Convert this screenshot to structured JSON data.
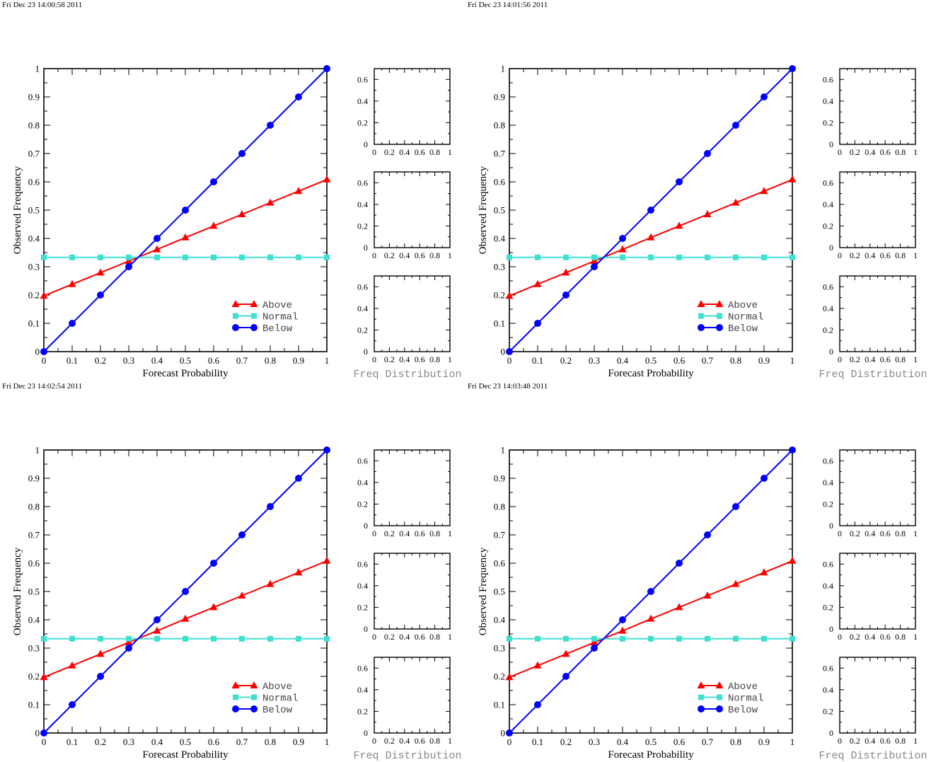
{
  "colors": {
    "above": "#ff0000",
    "normal": "#40e0d0",
    "below": "#0000ff",
    "axis": "#000000",
    "freq_label": "#888888"
  },
  "icons": {
    "above": "triangle-marker",
    "normal": "square-marker",
    "below": "circle-marker"
  },
  "chart_data": [
    {
      "type": "line",
      "timestamp": "Fri Dec 23 14:00:58 2011",
      "xlabel": "Forecast Probability",
      "ylabel": "Observed Frequency",
      "xlim": [
        0,
        1
      ],
      "ylim": [
        0,
        1
      ],
      "xticks": [
        "0",
        "0.1",
        "0.2",
        "0.3",
        "0.4",
        "0.5",
        "0.6",
        "0.7",
        "0.8",
        "0.9",
        "1"
      ],
      "yticks": [
        "0",
        "0.1",
        "0.2",
        "0.3",
        "0.4",
        "0.5",
        "0.6",
        "0.7",
        "0.8",
        "0.9",
        "1"
      ],
      "legend_position": "bottom-right",
      "x": [
        0,
        0.1,
        0.2,
        0.3,
        0.4,
        0.5,
        0.6,
        0.7,
        0.8,
        0.9,
        1
      ],
      "series": [
        {
          "name": "Above",
          "color": "#ff0000",
          "marker": "triangle",
          "values": [
            0.197,
            0.238,
            0.279,
            0.32,
            0.361,
            0.403,
            0.444,
            0.485,
            0.526,
            0.567,
            0.608
          ]
        },
        {
          "name": "Normal",
          "color": "#40e0d0",
          "marker": "square",
          "values": [
            0.333,
            0.333,
            0.333,
            0.333,
            0.333,
            0.333,
            0.333,
            0.333,
            0.333,
            0.333,
            0.333
          ]
        },
        {
          "name": "Below",
          "color": "#0000ff",
          "marker": "circle",
          "values": [
            0,
            0.1,
            0.2,
            0.3,
            0.4,
            0.5,
            0.6,
            0.7,
            0.8,
            0.9,
            1
          ]
        }
      ],
      "freq_distribution": {
        "label": "Freq Distribution",
        "panels": 3,
        "xticks": [
          "0",
          "0.2",
          "0.4",
          "0.6",
          "0.8",
          "1"
        ],
        "yticks": [
          "0",
          "0.2",
          "0.4",
          "0.6"
        ],
        "xlim": [
          0,
          1
        ],
        "ylim": [
          0,
          0.7
        ]
      }
    },
    {
      "type": "line",
      "timestamp": "Fri Dec 23 14:01:56 2011",
      "xlabel": "Forecast Probability",
      "ylabel": "Observed Frequency",
      "xlim": [
        0,
        1
      ],
      "ylim": [
        0,
        1
      ],
      "xticks": [
        "0",
        "0.1",
        "0.2",
        "0.3",
        "0.4",
        "0.5",
        "0.6",
        "0.7",
        "0.8",
        "0.9",
        "1"
      ],
      "yticks": [
        "0",
        "0.1",
        "0.2",
        "0.3",
        "0.4",
        "0.5",
        "0.6",
        "0.7",
        "0.8",
        "0.9",
        "1"
      ],
      "legend_position": "bottom-right",
      "x": [
        0,
        0.1,
        0.2,
        0.3,
        0.4,
        0.5,
        0.6,
        0.7,
        0.8,
        0.9,
        1
      ],
      "series": [
        {
          "name": "Above",
          "color": "#ff0000",
          "marker": "triangle",
          "values": [
            0.197,
            0.238,
            0.279,
            0.32,
            0.361,
            0.403,
            0.444,
            0.485,
            0.526,
            0.567,
            0.608
          ]
        },
        {
          "name": "Normal",
          "color": "#40e0d0",
          "marker": "square",
          "values": [
            0.333,
            0.333,
            0.333,
            0.333,
            0.333,
            0.333,
            0.333,
            0.333,
            0.333,
            0.333,
            0.333
          ]
        },
        {
          "name": "Below",
          "color": "#0000ff",
          "marker": "circle",
          "values": [
            0,
            0.1,
            0.2,
            0.3,
            0.4,
            0.5,
            0.6,
            0.7,
            0.8,
            0.9,
            1
          ]
        }
      ],
      "freq_distribution": {
        "label": "Freq Distribution",
        "panels": 3,
        "xticks": [
          "0",
          "0.2",
          "0.4",
          "0.6",
          "0.8",
          "1"
        ],
        "yticks": [
          "0",
          "0.2",
          "0.4",
          "0.6"
        ],
        "xlim": [
          0,
          1
        ],
        "ylim": [
          0,
          0.7
        ]
      }
    },
    {
      "type": "line",
      "timestamp": "Fri Dec 23 14:02:54 2011",
      "xlabel": "Forecast Probability",
      "ylabel": "Observed Frequency",
      "xlim": [
        0,
        1
      ],
      "ylim": [
        0,
        1
      ],
      "xticks": [
        "0",
        "0.1",
        "0.2",
        "0.3",
        "0.4",
        "0.5",
        "0.6",
        "0.7",
        "0.8",
        "0.9",
        "1"
      ],
      "yticks": [
        "0",
        "0.1",
        "0.2",
        "0.3",
        "0.4",
        "0.5",
        "0.6",
        "0.7",
        "0.8",
        "0.9",
        "1"
      ],
      "legend_position": "bottom-right",
      "x": [
        0,
        0.1,
        0.2,
        0.3,
        0.4,
        0.5,
        0.6,
        0.7,
        0.8,
        0.9,
        1
      ],
      "series": [
        {
          "name": "Above",
          "color": "#ff0000",
          "marker": "triangle",
          "values": [
            0.197,
            0.238,
            0.279,
            0.32,
            0.361,
            0.403,
            0.444,
            0.485,
            0.526,
            0.567,
            0.608
          ]
        },
        {
          "name": "Normal",
          "color": "#40e0d0",
          "marker": "square",
          "values": [
            0.333,
            0.333,
            0.333,
            0.333,
            0.333,
            0.333,
            0.333,
            0.333,
            0.333,
            0.333,
            0.333
          ]
        },
        {
          "name": "Below",
          "color": "#0000ff",
          "marker": "circle",
          "values": [
            0,
            0.1,
            0.2,
            0.3,
            0.4,
            0.5,
            0.6,
            0.7,
            0.8,
            0.9,
            1
          ]
        }
      ],
      "freq_distribution": {
        "label": "Freq Distribution",
        "panels": 3,
        "xticks": [
          "0",
          "0.2",
          "0.4",
          "0.6",
          "0.8",
          "1"
        ],
        "yticks": [
          "0",
          "0.2",
          "0.4",
          "0.6"
        ],
        "xlim": [
          0,
          1
        ],
        "ylim": [
          0,
          0.7
        ]
      }
    },
    {
      "type": "line",
      "timestamp": "Fri Dec 23 14:03:48 2011",
      "xlabel": "Forecast Probability",
      "ylabel": "Observed Frequency",
      "xlim": [
        0,
        1
      ],
      "ylim": [
        0,
        1
      ],
      "xticks": [
        "0",
        "0.1",
        "0.2",
        "0.3",
        "0.4",
        "0.5",
        "0.6",
        "0.7",
        "0.8",
        "0.9",
        "1"
      ],
      "yticks": [
        "0",
        "0.1",
        "0.2",
        "0.3",
        "0.4",
        "0.5",
        "0.6",
        "0.7",
        "0.8",
        "0.9",
        "1"
      ],
      "legend_position": "bottom-right",
      "x": [
        0,
        0.1,
        0.2,
        0.3,
        0.4,
        0.5,
        0.6,
        0.7,
        0.8,
        0.9,
        1
      ],
      "series": [
        {
          "name": "Above",
          "color": "#ff0000",
          "marker": "triangle",
          "values": [
            0.197,
            0.238,
            0.279,
            0.32,
            0.361,
            0.403,
            0.444,
            0.485,
            0.526,
            0.567,
            0.608
          ]
        },
        {
          "name": "Normal",
          "color": "#40e0d0",
          "marker": "square",
          "values": [
            0.333,
            0.333,
            0.333,
            0.333,
            0.333,
            0.333,
            0.333,
            0.333,
            0.333,
            0.333,
            0.333
          ]
        },
        {
          "name": "Below",
          "color": "#0000ff",
          "marker": "circle",
          "values": [
            0,
            0.1,
            0.2,
            0.3,
            0.4,
            0.5,
            0.6,
            0.7,
            0.8,
            0.9,
            1
          ]
        }
      ],
      "freq_distribution": {
        "label": "Freq Distribution",
        "panels": 3,
        "xticks": [
          "0",
          "0.2",
          "0.4",
          "0.6",
          "0.8",
          "1"
        ],
        "yticks": [
          "0",
          "0.2",
          "0.4",
          "0.6"
        ],
        "xlim": [
          0,
          1
        ],
        "ylim": [
          0,
          0.7
        ]
      }
    }
  ]
}
